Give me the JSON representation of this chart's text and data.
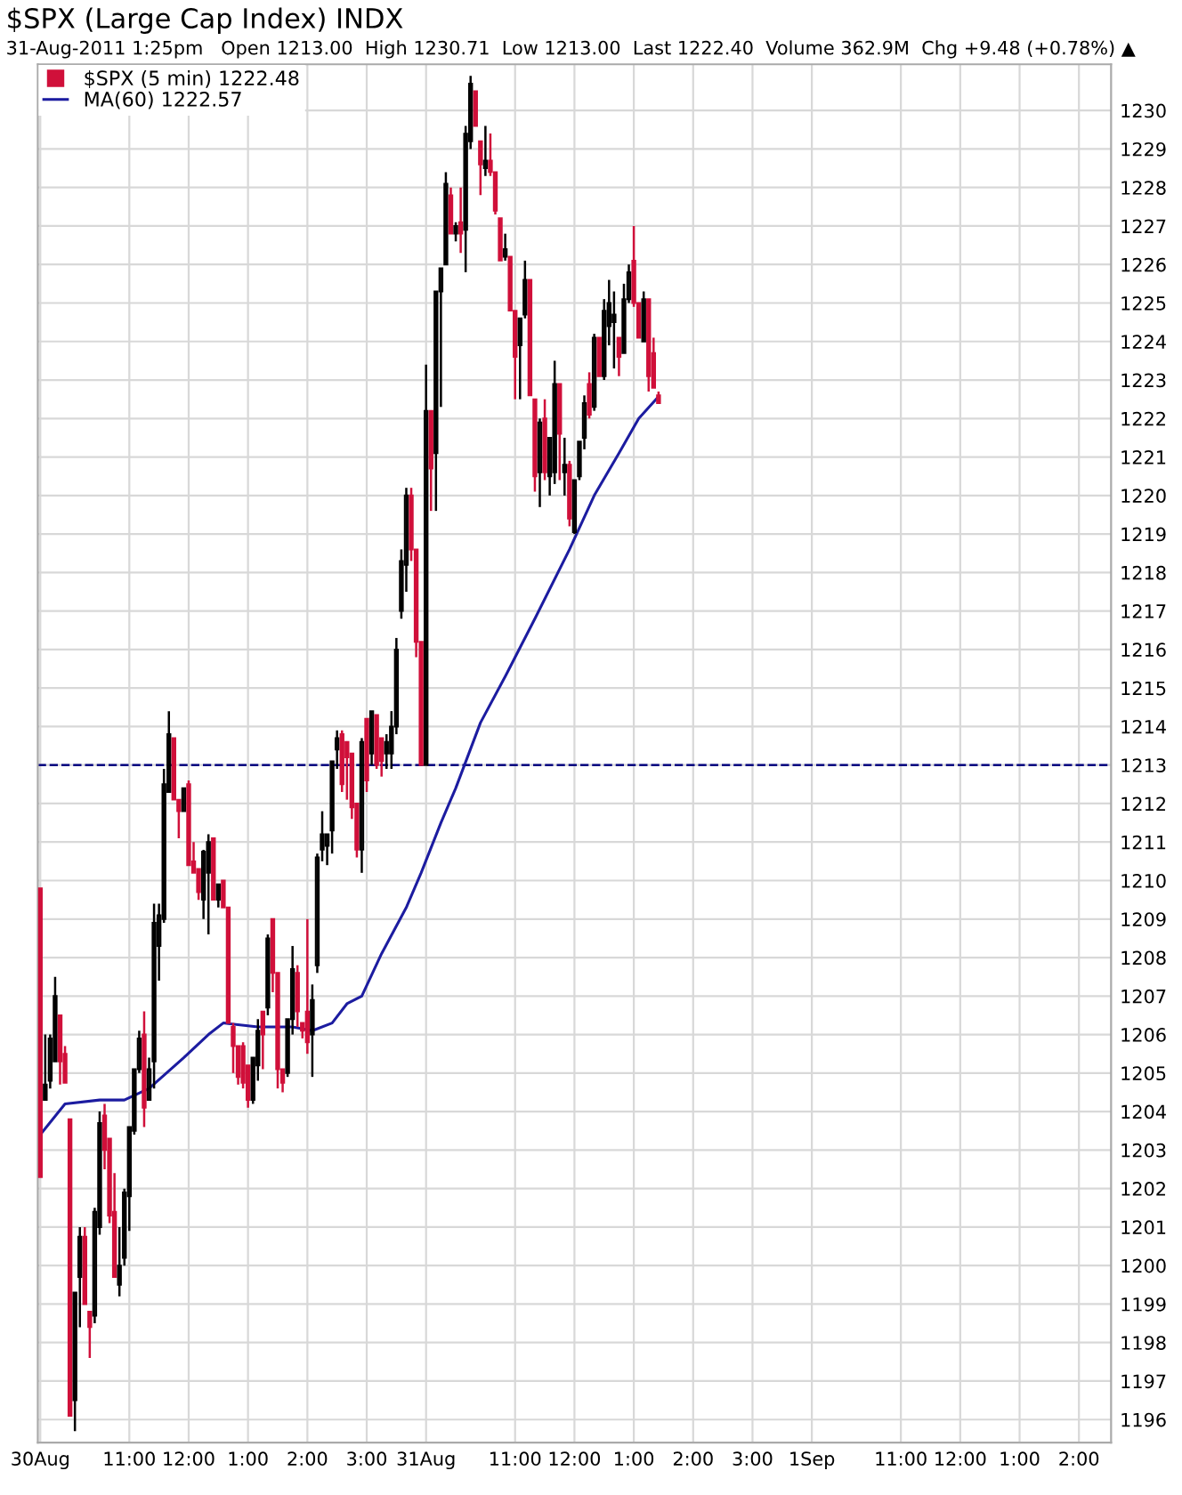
{
  "chart_data": {
    "type": "candlestick",
    "title": "$SPX (Large Cap Index) INDX",
    "subtitle": "31-Aug-2011 1:25pm   Open 1213.00  High 1230.71  Low 1213.00  Last 1222.40  Volume 362.9M  Chg +9.48 (+0.78%) ▲",
    "series": [
      {
        "name": "$SPX (5 min) 1222.48",
        "colors": [
          "#d0103a",
          "#000000",
          "#000000",
          "#000000",
          "#d0103a",
          "#d0103a",
          "#d0103a",
          "#000000",
          "#000000",
          "#d0103a",
          "#d0103a",
          "#000000",
          "#000000",
          "#d0103a",
          "#d0103a",
          "#d0103a",
          "#000000",
          "#000000",
          "#000000",
          "#000000",
          "#000000",
          "#d0103a",
          "#000000",
          "#000000",
          "#000000",
          "#000000",
          "#000000",
          "#d0103a",
          "#d0103a",
          "#000000",
          "#d0103a",
          "#d0103a",
          "#d0103a",
          "#000000",
          "#000000",
          "#d0103a",
          "#000000",
          "#d0103a",
          "#d0103a",
          "#d0103a",
          "#d0103a",
          "#d0103a",
          "#d0103a",
          "#000000",
          "#000000",
          "#d0103a",
          "#000000",
          "#d0103a",
          "#d0103a",
          "#d0103a",
          "#000000",
          "#000000",
          "#d0103a",
          "#d0103a",
          "#d0103a",
          "#000000",
          "#000000",
          "#000000",
          "#000000",
          "#000000",
          "#000000",
          "#d0103a",
          "#d0103a",
          "#d0103a",
          "#d0103a",
          "#000000",
          "#d0103a",
          "#000000",
          "#d0103a",
          "#d0103a",
          "#000000",
          "#000000",
          "#000000",
          "#000000",
          "#000000",
          "#d0103a",
          "#d0103a",
          "#d0103a",
          "#000000",
          "#d0103a",
          "#000000",
          "#000000",
          "#000000",
          "#d0103a",
          "#000000",
          "#d0103a",
          "#000000",
          "#000000",
          "#d0103a",
          "#d0103a",
          "#000000",
          "#d0103a",
          "#d0103a",
          "#d0103a",
          "#000000",
          "#d0103a",
          "#d0103a",
          "#000000",
          "#000000",
          "#d0103a",
          "#d0103a",
          "#000000",
          "#d0103a",
          "#000000",
          "#000000",
          "#d0103a",
          "#000000",
          "#d0103a",
          "#000000",
          "#000000",
          "#000000",
          "#d0103a",
          "#000000",
          "#d0103a",
          "#000000",
          "#000000",
          "#000000",
          "#d0103a",
          "#000000",
          "#000000",
          "#d0103a",
          "#d0103a",
          "#000000",
          "#d0103a",
          "#d0103a",
          "#d0103a",
          null,
          null,
          null,
          null,
          null,
          null,
          null,
          null,
          null,
          null,
          null,
          null,
          null,
          null,
          null,
          null,
          null,
          null,
          null,
          null,
          null,
          null,
          null,
          null,
          null,
          null,
          null,
          null,
          null,
          null,
          null,
          null,
          null,
          null,
          null,
          null,
          null,
          null,
          null,
          null,
          null,
          null,
          null,
          null,
          null,
          null,
          null,
          null,
          null,
          null,
          null,
          null,
          null,
          null,
          null,
          null,
          null,
          null,
          null,
          null,
          null,
          null,
          null,
          null,
          null,
          null,
          null,
          null,
          null,
          null,
          null,
          null,
          null,
          null,
          null,
          null,
          null,
          null,
          null,
          null,
          null,
          null,
          null,
          null,
          null,
          null,
          null,
          null,
          null,
          null,
          null
        ],
        "ohlc": [
          [
            1209.8,
            1209.8,
            1202.3,
            1202.3
          ],
          [
            1204.3,
            1206.0,
            1204.3,
            1204.7
          ],
          [
            1204.8,
            1206.0,
            1204.6,
            1205.9
          ],
          [
            1205.3,
            1207.5,
            1205.3,
            1207.0
          ],
          [
            1206.5,
            1206.5,
            1204.7,
            1205.3
          ],
          [
            1205.5,
            1205.7,
            1204.75,
            1204.75
          ],
          [
            1203.8,
            1203.8,
            1196.1,
            1196.1
          ],
          [
            1196.5,
            1199.3,
            1195.7,
            1199.3
          ],
          [
            1199.7,
            1201.0,
            1198.4,
            1200.75
          ],
          [
            1200.75,
            1201.0,
            1199.0,
            1199.0
          ],
          [
            1198.8,
            1198.8,
            1197.6,
            1198.4
          ],
          [
            1198.7,
            1201.5,
            1198.5,
            1201.4
          ],
          [
            1201.0,
            1204.0,
            1200.8,
            1203.7
          ],
          [
            1203.9,
            1204.2,
            1202.5,
            1203.0
          ],
          [
            1203.3,
            1203.3,
            1201.1,
            1201.3
          ],
          [
            1201.4,
            1202.4,
            1199.7,
            1199.7
          ],
          [
            1199.5,
            1201.0,
            1199.2,
            1200.0
          ],
          [
            1200.2,
            1202.0,
            1200.0,
            1201.9
          ],
          [
            1201.8,
            1203.6,
            1200.9,
            1203.6
          ],
          [
            1203.5,
            1205.1,
            1203.4,
            1205.1
          ],
          [
            1205.1,
            1206.1,
            1205.0,
            1205.9
          ],
          [
            1206.0,
            1206.6,
            1203.6,
            1204.1
          ],
          [
            1204.3,
            1205.4,
            1204.3,
            1205.1
          ],
          [
            1205.3,
            1209.4,
            1204.6,
            1208.9
          ],
          [
            1208.3,
            1209.4,
            1207.4,
            1209.1
          ],
          [
            1209.0,
            1212.9,
            1208.9,
            1212.5
          ],
          [
            1212.3,
            1214.4,
            1212.3,
            1213.8
          ],
          [
            1213.7,
            1213.7,
            1212.1,
            1212.1
          ],
          [
            1212.1,
            1212.1,
            1211.1,
            1211.8
          ],
          [
            1211.8,
            1212.4,
            1211.8,
            1212.4
          ],
          [
            1212.5,
            1212.6,
            1210.4,
            1210.4
          ],
          [
            1210.5,
            1211.0,
            1210.2,
            1210.2
          ],
          [
            1210.3,
            1210.3,
            1209.5,
            1209.7
          ],
          [
            1209.5,
            1210.8,
            1209.0,
            1210.75
          ],
          [
            1210.2,
            1211.2,
            1208.6,
            1211.0
          ],
          [
            1211.1,
            1211.1,
            1209.5,
            1209.5
          ],
          [
            1209.5,
            1209.9,
            1209.3,
            1209.9
          ],
          [
            1210.0,
            1210.0,
            1209.3,
            1209.3
          ],
          [
            1209.3,
            1209.3,
            1206.3,
            1206.3
          ],
          [
            1206.2,
            1206.3,
            1205.0,
            1205.7
          ],
          [
            1205.7,
            1205.7,
            1204.7,
            1204.9
          ],
          [
            1205.7,
            1205.8,
            1204.6,
            1204.75
          ],
          [
            1205.2,
            1205.2,
            1204.1,
            1204.3
          ],
          [
            1204.3,
            1205.4,
            1204.2,
            1205.4
          ],
          [
            1205.2,
            1206.4,
            1204.8,
            1206.1
          ],
          [
            1206.6,
            1206.6,
            1205.1,
            1206.0
          ],
          [
            1206.7,
            1208.6,
            1206.5,
            1208.5
          ],
          [
            1209.0,
            1209.0,
            1207.1,
            1207.6
          ],
          [
            1207.6,
            1207.6,
            1204.6,
            1205.1
          ],
          [
            1205.1,
            1205.1,
            1204.5,
            1204.75
          ],
          [
            1205.0,
            1206.4,
            1204.9,
            1206.4
          ],
          [
            1206.4,
            1208.3,
            1206.0,
            1207.7
          ],
          [
            1207.6,
            1207.8,
            1206.2,
            1206.6
          ],
          [
            1206.3,
            1206.3,
            1205.9,
            1206.1
          ],
          [
            1206.6,
            1209.0,
            1205.5,
            1205.8
          ],
          [
            1206.0,
            1207.3,
            1204.9,
            1206.9
          ],
          [
            1207.8,
            1210.7,
            1207.6,
            1210.6
          ],
          [
            1210.8,
            1211.8,
            1210.5,
            1211.2
          ],
          [
            1210.9,
            1211.2,
            1210.4,
            1211.2
          ],
          [
            1211.3,
            1213.1,
            1210.7,
            1213.1
          ],
          [
            1213.4,
            1213.9,
            1212.9,
            1213.7
          ],
          [
            1213.8,
            1213.9,
            1212.3,
            1212.5
          ],
          [
            1213.6,
            1213.6,
            1212.1,
            1213.2
          ],
          [
            1213.3,
            1213.3,
            1211.6,
            1211.9
          ],
          [
            1212.0,
            1212.0,
            1210.6,
            1210.8
          ],
          [
            1210.8,
            1213.7,
            1210.2,
            1213.6
          ],
          [
            1214.2,
            1214.2,
            1212.3,
            1212.6
          ],
          [
            1213.3,
            1214.4,
            1213.0,
            1214.4
          ],
          [
            1214.3,
            1214.3,
            1212.9,
            1213.0
          ],
          [
            1213.7,
            1213.7,
            1212.7,
            1213.1
          ],
          [
            1213.3,
            1213.8,
            1212.9,
            1213.6
          ],
          [
            1213.3,
            1214.4,
            1212.9,
            1214.0
          ],
          [
            1214.0,
            1216.3,
            1213.8,
            1216.0
          ],
          [
            1217.0,
            1218.6,
            1216.8,
            1218.3
          ],
          [
            1218.2,
            1220.2,
            1217.5,
            1220.0
          ],
          [
            1220.0,
            1220.2,
            1218.3,
            1218.6
          ],
          [
            1218.6,
            1218.6,
            1215.8,
            1216.2
          ],
          [
            1216.2,
            1216.2,
            1213.0,
            1213.0
          ],
          [
            1213.0,
            1223.4,
            1213.0,
            1222.2
          ],
          [
            1222.2,
            1222.2,
            1219.6,
            1220.7
          ],
          [
            1221.1,
            1225.3,
            1219.6,
            1225.3
          ],
          [
            1225.3,
            1225.9,
            1222.3,
            1225.9
          ],
          [
            1226.0,
            1228.4,
            1226.0,
            1228.1
          ],
          [
            1227.8,
            1228.0,
            1226.8,
            1226.8
          ],
          [
            1226.8,
            1227.1,
            1226.6,
            1227.0
          ],
          [
            1227.1,
            1228.0,
            1226.3,
            1226.8
          ],
          [
            1226.9,
            1229.6,
            1225.8,
            1229.4
          ],
          [
            1229.2,
            1230.9,
            1229.0,
            1230.7
          ],
          [
            1230.5,
            1230.5,
            1229.6,
            1229.6
          ],
          [
            1229.2,
            1229.2,
            1227.8,
            1228.6
          ],
          [
            1228.5,
            1229.6,
            1228.3,
            1228.7
          ],
          [
            1228.7,
            1229.4,
            1228.3,
            1228.4
          ],
          [
            1228.4,
            1228.4,
            1227.3,
            1227.4
          ],
          [
            1227.2,
            1227.2,
            1226.1,
            1226.1
          ],
          [
            1226.2,
            1226.8,
            1226.1,
            1226.4
          ],
          [
            1226.2,
            1226.2,
            1224.8,
            1224.8
          ],
          [
            1224.8,
            1224.8,
            1222.5,
            1223.6
          ],
          [
            1223.9,
            1224.6,
            1222.5,
            1224.6
          ],
          [
            1224.7,
            1226.1,
            1224.6,
            1225.6
          ],
          [
            1225.6,
            1225.6,
            1222.6,
            1222.6
          ],
          [
            1222.5,
            1222.5,
            1220.1,
            1220.5
          ],
          [
            1220.6,
            1222.0,
            1219.7,
            1221.9
          ],
          [
            1222.0,
            1222.5,
            1220.4,
            1220.6
          ],
          [
            1220.5,
            1221.5,
            1220.0,
            1221.5
          ],
          [
            1220.6,
            1223.5,
            1220.3,
            1222.9
          ],
          [
            1222.9,
            1222.9,
            1220.4,
            1221.6
          ],
          [
            1220.6,
            1221.5,
            1220.0,
            1220.8
          ],
          [
            1220.8,
            1220.9,
            1219.2,
            1219.4
          ],
          [
            1219.05,
            1220.4,
            1219.0,
            1220.4
          ],
          [
            1220.5,
            1221.4,
            1220.4,
            1221.4
          ],
          [
            1221.5,
            1222.6,
            1221.2,
            1222.4
          ],
          [
            1222.9,
            1223.2,
            1222.0,
            1222.1
          ],
          [
            1222.3,
            1224.2,
            1222.2,
            1224.1
          ],
          [
            1224.1,
            1224.1,
            1223.1,
            1223.1
          ],
          [
            1223.1,
            1225.1,
            1223.0,
            1224.8
          ],
          [
            1224.4,
            1225.6,
            1223.9,
            1225.0
          ],
          [
            1224.5,
            1225.3,
            1223.3,
            1224.7
          ],
          [
            1224.1,
            1224.1,
            1223.1,
            1223.6
          ],
          [
            1223.7,
            1225.5,
            1223.7,
            1225.1
          ],
          [
            1225.1,
            1226.0,
            1225.0,
            1225.8
          ],
          [
            1226.1,
            1227.0,
            1224.9,
            1225.0
          ],
          [
            1225.0,
            1225.0,
            1224.1,
            1224.1
          ],
          [
            1224.0,
            1225.3,
            1224.0,
            1225.1
          ],
          [
            1225.1,
            1225.1,
            1222.7,
            1223.1
          ],
          [
            1223.7,
            1224.1,
            1222.8,
            1222.8
          ],
          [
            1222.6,
            1222.7,
            1222.4,
            1222.4
          ],
          null,
          null,
          null,
          null,
          null,
          null,
          null,
          null,
          null,
          null,
          null,
          null,
          null,
          null,
          null,
          null,
          null,
          null,
          null,
          null,
          null,
          null,
          null,
          null,
          null,
          null,
          null,
          null,
          null,
          null,
          null,
          null,
          null,
          null,
          null,
          null,
          null,
          null,
          null,
          null,
          null,
          null,
          null,
          null,
          null,
          null,
          null,
          null,
          null,
          null,
          null,
          null,
          null,
          null,
          null,
          null,
          null,
          null,
          null,
          null,
          null,
          null,
          null,
          null,
          null,
          null,
          null,
          null,
          null,
          null,
          null,
          null,
          null,
          null,
          null,
          null,
          null,
          null,
          null,
          null,
          null,
          null,
          null,
          null,
          null,
          null,
          null,
          null,
          null,
          null,
          null
        ]
      },
      {
        "type": "line",
        "name": "MA(60) 1222.57",
        "color": "#1c1ca0",
        "values": [
          1203.4,
          null,
          null,
          null,
          null,
          1204.2,
          null,
          null,
          null,
          null,
          null,
          null,
          1204.3,
          null,
          null,
          null,
          null,
          1204.3,
          null,
          null,
          null,
          null,
          1204.6,
          null,
          null,
          null,
          null,
          null,
          null,
          1205.4,
          null,
          null,
          null,
          null,
          1206.0,
          null,
          null,
          1206.3,
          null,
          null,
          null,
          null,
          null,
          null,
          1206.2,
          null,
          null,
          null,
          null,
          null,
          null,
          1206.2,
          null,
          null,
          null,
          1206.1,
          null,
          null,
          null,
          1206.3,
          null,
          null,
          1206.8,
          null,
          null,
          1207.0,
          null,
          null,
          null,
          1208.1,
          null,
          null,
          null,
          null,
          1209.3,
          null,
          null,
          1210.2,
          null,
          null,
          null,
          1211.5,
          null,
          null,
          1212.4,
          null,
          null,
          null,
          null,
          1214.1,
          null,
          null,
          null,
          null,
          1215.3,
          null,
          null,
          null,
          null,
          null,
          1216.8,
          null,
          null,
          null,
          null,
          null,
          null,
          1218.6,
          null,
          null,
          null,
          null,
          1220.0,
          null,
          null,
          null,
          null,
          1221.1,
          null,
          null,
          null,
          1222.0,
          null,
          null,
          null,
          1222.57,
          null,
          null,
          null,
          null,
          null,
          null,
          null,
          null,
          null,
          null,
          null,
          null,
          null,
          null,
          null,
          null,
          null,
          null,
          null,
          null,
          null,
          null,
          null,
          null,
          null,
          null,
          null,
          null,
          null,
          null,
          null,
          null,
          null,
          null,
          null,
          null,
          null,
          null,
          null,
          null,
          null,
          null,
          null,
          null,
          null,
          null,
          null,
          null,
          null,
          null,
          null,
          null,
          null,
          null,
          null,
          null,
          null,
          null,
          null,
          null,
          null,
          null,
          null,
          null,
          null,
          null,
          null,
          null,
          null,
          null,
          null,
          null,
          null,
          null,
          null,
          null,
          null,
          null,
          null,
          null,
          null,
          null,
          null,
          null,
          null,
          null,
          null,
          null,
          null,
          null,
          null
        ]
      }
    ],
    "categories": [
      "30Aug",
      null,
      null,
      null,
      null,
      null,
      null,
      null,
      null,
      null,
      null,
      null,
      null,
      null,
      null,
      null,
      null,
      null,
      "11:00",
      null,
      null,
      null,
      null,
      null,
      null,
      null,
      null,
      null,
      null,
      null,
      "12:00",
      null,
      null,
      null,
      null,
      null,
      null,
      null,
      null,
      null,
      null,
      null,
      "1:00",
      null,
      null,
      null,
      null,
      null,
      null,
      null,
      null,
      null,
      null,
      null,
      "2:00",
      null,
      null,
      null,
      null,
      null,
      null,
      null,
      null,
      null,
      null,
      null,
      "3:00",
      null,
      null,
      null,
      null,
      null,
      null,
      null,
      null,
      null,
      null,
      null,
      "31Aug",
      null,
      null,
      null,
      null,
      null,
      null,
      null,
      null,
      null,
      null,
      null,
      null,
      null,
      null,
      null,
      null,
      null,
      "11:00",
      null,
      null,
      null,
      null,
      null,
      null,
      null,
      null,
      null,
      null,
      null,
      "12:00",
      null,
      null,
      null,
      null,
      null,
      null,
      null,
      null,
      null,
      null,
      null,
      "1:00",
      null,
      null,
      null,
      null,
      null,
      null,
      null,
      null,
      null,
      null,
      null,
      "2:00",
      null,
      null,
      null,
      null,
      null,
      null,
      null,
      null,
      null,
      null,
      null,
      "3:00",
      null,
      null,
      null,
      null,
      null,
      null,
      null,
      null,
      null,
      null,
      null,
      "1Sep",
      null,
      null,
      null,
      null,
      null,
      null,
      null,
      null,
      null,
      null,
      null,
      null,
      null,
      null,
      null,
      null,
      null,
      "11:00",
      null,
      null,
      null,
      null,
      null,
      null,
      null,
      null,
      null,
      null,
      null,
      "12:00",
      null,
      null,
      null,
      null,
      null,
      null,
      null,
      null,
      null,
      null,
      null,
      "1:00",
      null,
      null,
      null,
      null,
      null,
      null,
      null,
      null,
      null,
      null,
      null,
      "2:00",
      null,
      null,
      null,
      null,
      null,
      null
    ],
    "ylim": [
      1195.4,
      1231.2
    ],
    "yticks": [
      1196,
      1197,
      1198,
      1199,
      1200,
      1201,
      1202,
      1203,
      1204,
      1205,
      1206,
      1207,
      1208,
      1209,
      1210,
      1211,
      1212,
      1213,
      1214,
      1215,
      1216,
      1217,
      1218,
      1219,
      1220,
      1221,
      1222,
      1223,
      1224,
      1225,
      1226,
      1227,
      1228,
      1229,
      1230
    ],
    "ref_lines": [
      {
        "axis": "y",
        "value": 1213,
        "color": "#000080",
        "line_style": "dashed"
      }
    ],
    "grid": true,
    "legend": "top left"
  }
}
